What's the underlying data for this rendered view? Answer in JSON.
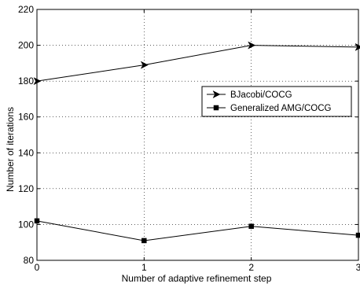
{
  "chart_data": {
    "type": "line",
    "xlabel": "Number of adaptive refinement step",
    "ylabel": "Number of iterations",
    "xlim": [
      0,
      3
    ],
    "ylim": [
      80,
      220
    ],
    "x_ticks": [
      0,
      1,
      2,
      3
    ],
    "y_ticks": [
      80,
      100,
      120,
      140,
      160,
      180,
      200,
      220
    ],
    "grid": true,
    "legend_position": "right",
    "series": [
      {
        "name": "BJacobi/COCG",
        "marker": "right-arrow",
        "x": [
          0,
          1,
          2,
          3
        ],
        "values": [
          180,
          189,
          200,
          199
        ]
      },
      {
        "name": "Generalized AMG/COCG",
        "marker": "square",
        "x": [
          0,
          1,
          2,
          3
        ],
        "values": [
          102,
          91,
          99,
          94
        ]
      }
    ]
  },
  "colors": {
    "line": "#000000",
    "grid": "#000000",
    "background": "#ffffff"
  }
}
